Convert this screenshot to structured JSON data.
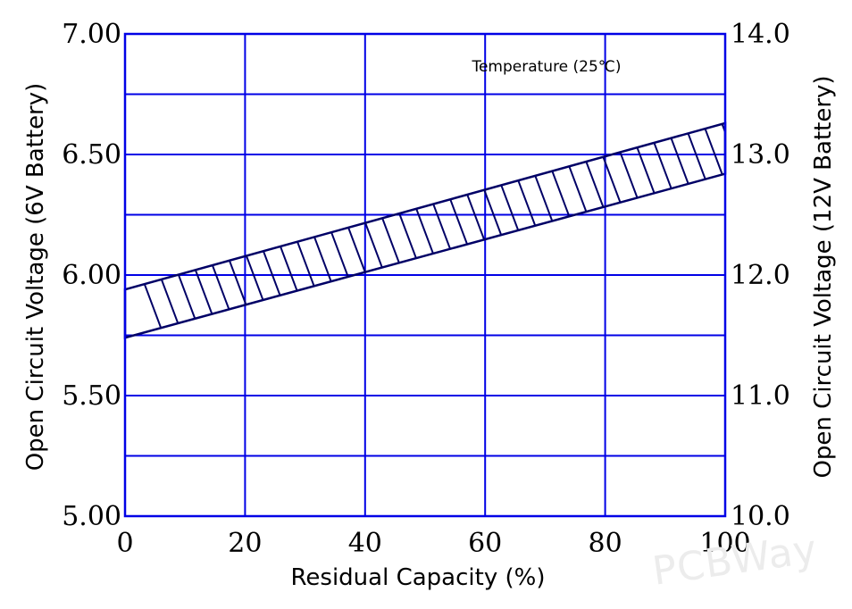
{
  "chart_data": {
    "type": "area",
    "title": "",
    "annotation": "Temperature (25℃)",
    "xlabel": "Residual Capacity (%)",
    "ylabel_left": "Open Circuit Voltage (6V Battery)",
    "ylabel_right": "Open Circuit Voltage (12V Battery)",
    "xlim": [
      0,
      100
    ],
    "ylim_left": [
      5.0,
      7.0
    ],
    "ylim_right": [
      10.0,
      14.0
    ],
    "x_ticks": [
      "0",
      "20",
      "40",
      "60",
      "80",
      "100"
    ],
    "y_left_ticks": [
      "5.00",
      "5.50",
      "6.00",
      "6.50",
      "7.00"
    ],
    "y_right_ticks": [
      "10.0",
      "11.0",
      "12.0",
      "13.0",
      "14.0"
    ],
    "grid": true,
    "grid_color": "#0000e6",
    "band_color": "#000066",
    "series": [
      {
        "x": [
          0,
          100
        ],
        "upper": [
          5.94,
          6.63
        ],
        "lower": [
          5.74,
          6.42
        ]
      }
    ],
    "watermark": "PCBWay"
  }
}
